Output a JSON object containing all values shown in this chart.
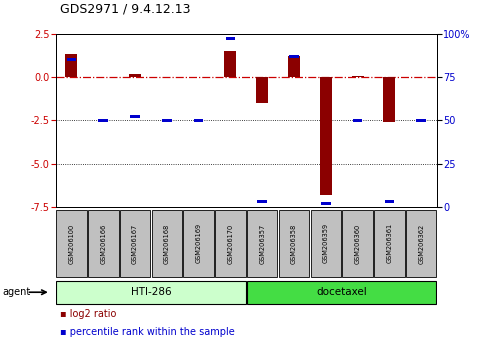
{
  "title": "GDS2971 / 9.4.12.13",
  "samples": [
    "GSM206100",
    "GSM206166",
    "GSM206167",
    "GSM206168",
    "GSM206169",
    "GSM206170",
    "GSM206357",
    "GSM206358",
    "GSM206359",
    "GSM206360",
    "GSM206361",
    "GSM206362"
  ],
  "log2_ratio": [
    1.3,
    0.0,
    0.15,
    0.0,
    0.0,
    1.5,
    -1.5,
    1.2,
    -6.8,
    0.05,
    -2.6,
    0.0
  ],
  "percentile_rank": [
    85,
    50,
    52,
    50,
    50,
    97,
    3,
    87,
    2,
    50,
    3,
    50
  ],
  "groups": [
    {
      "label": "HTI-286",
      "start": 0,
      "end": 5,
      "color": "#90EE90"
    },
    {
      "label": "docetaxel",
      "start": 6,
      "end": 11,
      "color": "#32CD32"
    }
  ],
  "ylim_left": [
    -7.5,
    2.5
  ],
  "ylim_right": [
    0,
    100
  ],
  "left_yticks": [
    2.5,
    0.0,
    -2.5,
    -5.0,
    -7.5
  ],
  "right_yticks": [
    100,
    75,
    50,
    25,
    0
  ],
  "right_ytick_labels": [
    "100%",
    "75",
    "50",
    "25",
    "0"
  ],
  "red_color": "#8B0000",
  "blue_color": "#0000CD",
  "zero_line_color": "#CC0000",
  "legend_red_label": "log2 ratio",
  "legend_blue_label": "percentile rank within the sample",
  "agent_label": "agent",
  "sample_box_color": "#C0C0C0",
  "hti286_color": "#CCFFCC",
  "docetaxel_color": "#44DD44"
}
